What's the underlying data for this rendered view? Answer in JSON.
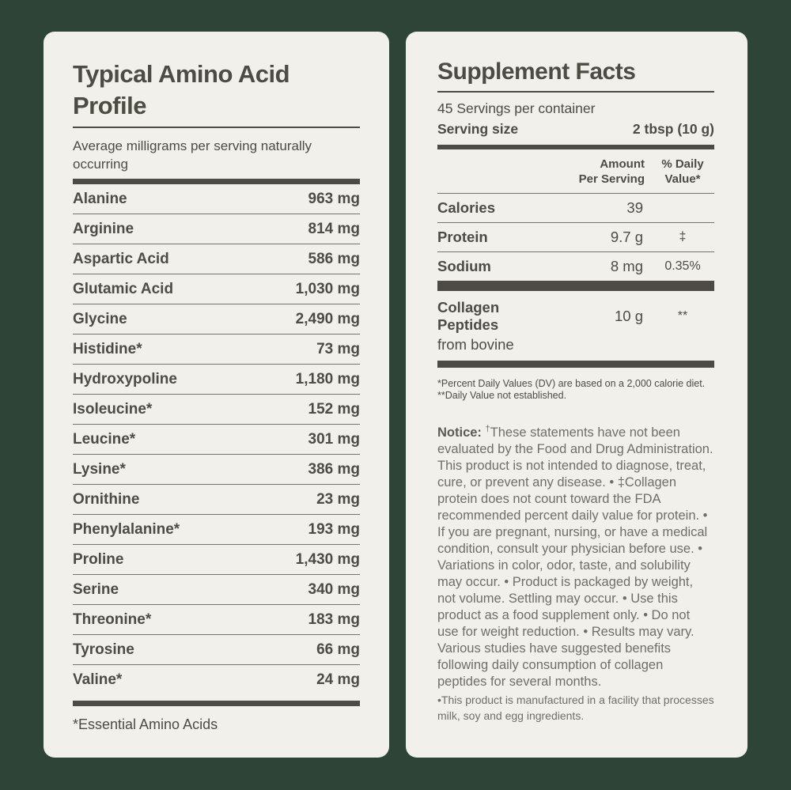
{
  "colors": {
    "background": "#2e4437",
    "panel": "#f1f0ea",
    "text_dark": "#4d4b44",
    "text_muted": "#6f6e68"
  },
  "amino": {
    "title": "Typical Amino Acid Profile",
    "subtitle": "Average milligrams per serving naturally occurring",
    "rows": [
      {
        "name": "Alanine",
        "value": "963 mg"
      },
      {
        "name": "Arginine",
        "value": "814 mg"
      },
      {
        "name": "Aspartic Acid",
        "value": "586 mg"
      },
      {
        "name": "Glutamic Acid",
        "value": "1,030 mg"
      },
      {
        "name": "Glycine",
        "value": "2,490 mg"
      },
      {
        "name": "Histidine*",
        "value": "73 mg"
      },
      {
        "name": "Hydroxypoline",
        "value": "1,180 mg"
      },
      {
        "name": "Isoleucine*",
        "value": "152 mg"
      },
      {
        "name": "Leucine*",
        "value": "301 mg"
      },
      {
        "name": "Lysine*",
        "value": "386 mg"
      },
      {
        "name": "Ornithine",
        "value": "23 mg"
      },
      {
        "name": "Phenylalanine*",
        "value": "193 mg"
      },
      {
        "name": "Proline",
        "value": "1,430 mg"
      },
      {
        "name": "Serine",
        "value": "340 mg"
      },
      {
        "name": "Threonine*",
        "value": "183 mg"
      },
      {
        "name": "Tyrosine",
        "value": "66 mg"
      },
      {
        "name": "Valine*",
        "value": "24 mg"
      }
    ],
    "footnote": "*Essential Amino Acids"
  },
  "supplement": {
    "title": "Supplement Facts",
    "servings_per_container": "45 Servings per container",
    "serving_size_label": "Serving size",
    "serving_size_value": "2 tbsp (10 g)",
    "col_amount_line1": "Amount",
    "col_amount_line2": "Per Serving",
    "col_dv_line1": "% Daily",
    "col_dv_line2": "Value*",
    "rows": [
      {
        "name": "Calories",
        "amount": "39",
        "dv": ""
      },
      {
        "name": "Protein",
        "amount": "9.7 g",
        "dv": "‡"
      },
      {
        "name": "Sodium",
        "amount": "8 mg",
        "dv": "0.35%"
      }
    ],
    "collagen": {
      "name": "Collagen Peptides",
      "amount": "10 g",
      "dv": "**",
      "sub": "from bovine"
    },
    "footnote1": "*Percent Daily Values (DV) are based on a 2,000 calorie diet.",
    "footnote2": "**Daily Value not established.",
    "notice_label": "Notice:",
    "notice_dagger": "†",
    "notice_body": "These statements have not been evaluated by the Food and Drug Administration. This product is not intended to diagnose, treat, cure, or prevent any disease. • ‡Collagen protein does not count toward the FDA recommended percent daily value for protein. • If you are pregnant, nursing, or have a medical condition, consult your physician before use. • Variations in color, odor, taste, and solubility may occur. • Product is packaged by weight, not volume. Settling may occur. • Use this product as a food supplement only. • Do not use for weight reduction. • Results may vary. Various studies have suggested benefits following daily consumption of collagen peptides for several months.",
    "facility_note": "•This product is manufactured in a facility that processes milk, soy and egg ingredients."
  }
}
